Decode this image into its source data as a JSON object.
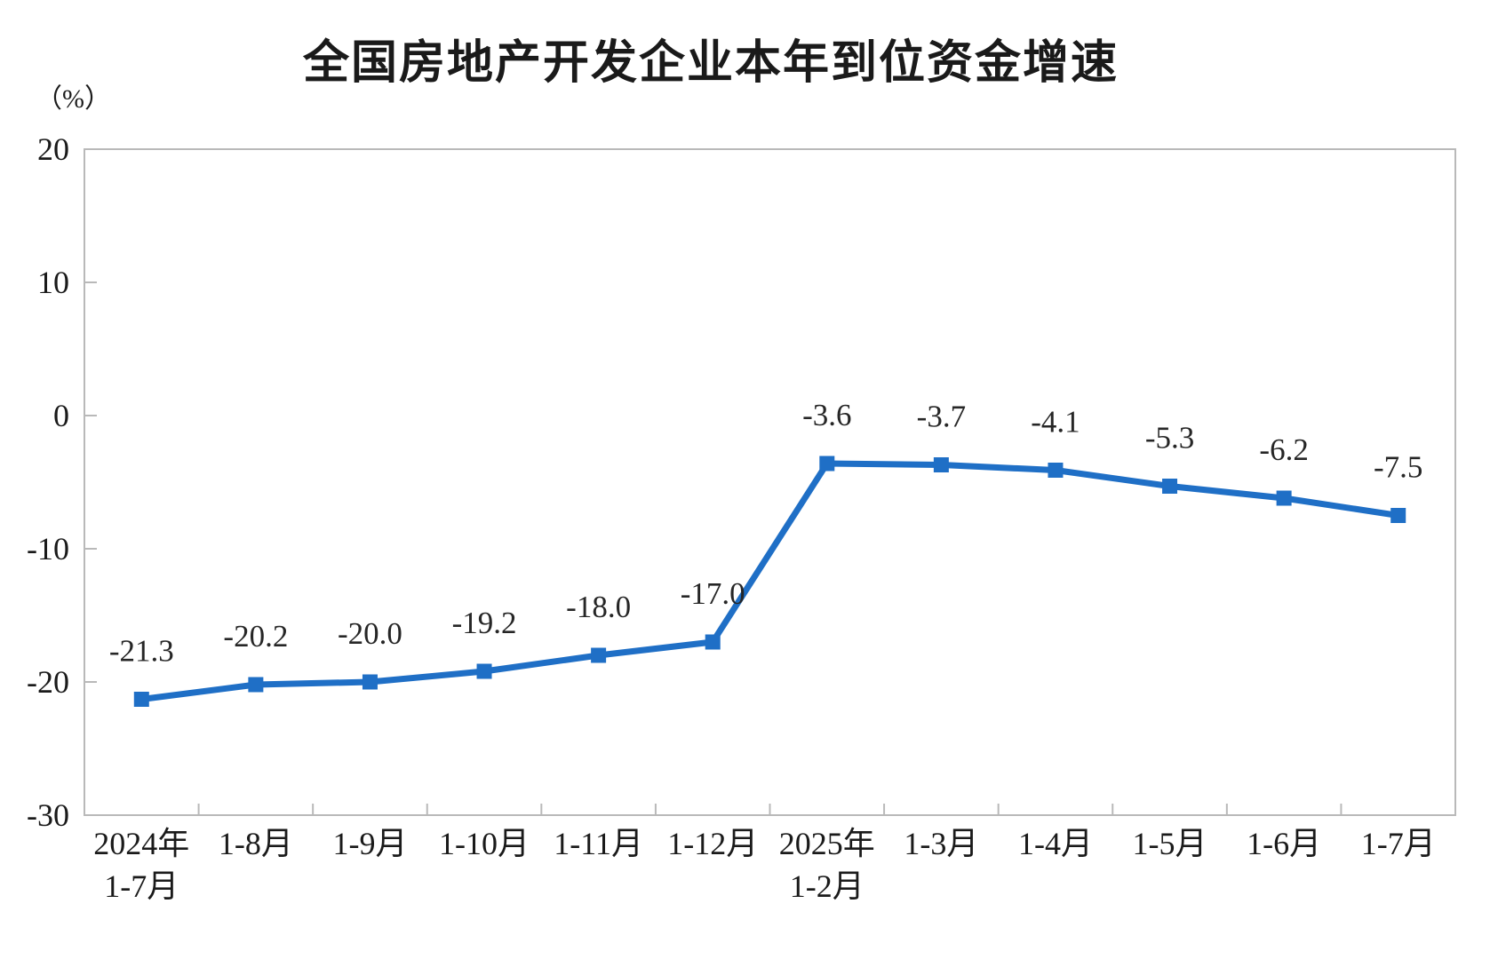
{
  "title": "全国房地产开发企业本年到位资金增速",
  "unit_label": "（%）",
  "colors": {
    "line": "#1F6FC6",
    "axis": "#b9b9b9",
    "text": "#1a1a1a",
    "data_label": "#262626"
  },
  "chart_data": {
    "type": "line",
    "title": "全国房地产开发企业本年到位资金增速",
    "ylabel": "（%）",
    "xlabel": "",
    "categories": [
      "2024年\n1-7月",
      "1-8月",
      "1-9月",
      "1-10月",
      "1-11月",
      "1-12月",
      "2025年\n1-2月",
      "1-3月",
      "1-4月",
      "1-5月",
      "1-6月",
      "1-7月"
    ],
    "values": [
      -21.3,
      -20.2,
      -20.0,
      -19.2,
      -18.0,
      -17.0,
      -3.6,
      -3.7,
      -4.1,
      -5.3,
      -6.2,
      -7.5
    ],
    "data_label_texts": [
      "-21.3",
      "-20.2",
      "-20.0",
      "-19.2",
      "-18.0",
      "-17.0",
      "-3.6",
      "-3.7",
      "-4.1",
      "-5.3",
      "-6.2",
      "-7.5"
    ],
    "ylim": [
      -30,
      20
    ],
    "yticks": [
      20,
      10,
      0,
      -10,
      -20,
      -30
    ],
    "grid": false,
    "legend": "none",
    "data_labels": "above",
    "marker": "square",
    "line_color": "#1F6FC6"
  }
}
